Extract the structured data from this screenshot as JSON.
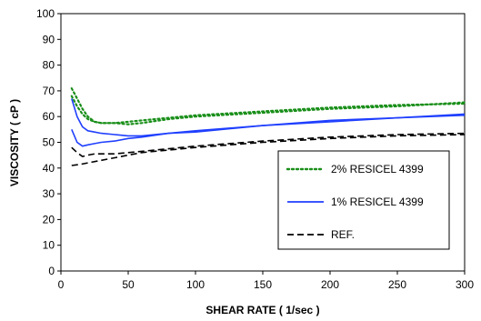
{
  "chart_data": {
    "type": "line",
    "xlabel": "SHEAR RATE ( 1/sec )",
    "ylabel": "VISCOSITY ( cP )",
    "xlim": [
      0,
      300
    ],
    "ylim": [
      0,
      100
    ],
    "xticks": [
      "0",
      "50",
      "100",
      "150",
      "200",
      "250",
      "300"
    ],
    "yticks": [
      "0",
      "10",
      "20",
      "30",
      "40",
      "50",
      "60",
      "70",
      "80",
      "90",
      "100"
    ],
    "grid": false,
    "legend_position": "bottom-right",
    "series": [
      {
        "name": "2% RESICEL 4399",
        "color": "#1a8f1a",
        "dash": "dotted",
        "curves": [
          {
            "x": [
              8,
              12,
              16,
              20,
              25,
              30,
              40,
              50,
              60,
              80,
              100,
              150,
              200,
              250,
              300
            ],
            "y": [
              71,
              67,
              63,
              60,
              58,
              57.5,
              57.5,
              58,
              58.5,
              59.5,
              60.5,
              62,
              63.5,
              64.5,
              65
            ]
          },
          {
            "x": [
              8,
              12,
              16,
              20,
              25,
              30,
              40,
              50,
              60,
              80,
              100,
              150,
              200,
              250,
              300
            ],
            "y": [
              68,
              64,
              61,
              59,
              58,
              57.5,
              57.5,
              57,
              57.5,
              59,
              60,
              61.5,
              63,
              64,
              65.5
            ]
          }
        ]
      },
      {
        "name": "1% RESICEL 4399",
        "color": "#1f3fff",
        "dash": "solid",
        "curves": [
          {
            "x": [
              8,
              12,
              16,
              20,
              25,
              30,
              40,
              50,
              60,
              80,
              100,
              150,
              200,
              250,
              300
            ],
            "y": [
              67,
              60,
              56,
              54.5,
              54,
              53.5,
              53,
              52.5,
              52.5,
              53.5,
              54.5,
              56.5,
              58.5,
              59.5,
              61
            ]
          },
          {
            "x": [
              8,
              12,
              16,
              20,
              25,
              30,
              40,
              50,
              60,
              80,
              100,
              150,
              200,
              250,
              300
            ],
            "y": [
              55,
              50,
              48.5,
              49,
              49.5,
              50,
              50.5,
              51.5,
              52,
              53.5,
              54,
              56.5,
              58,
              59.5,
              60.5
            ]
          }
        ]
      },
      {
        "name": "REF.",
        "color": "#000000",
        "dash": "dashed",
        "curves": [
          {
            "x": [
              8,
              12,
              16,
              20,
              25,
              30,
              40,
              50,
              60,
              80,
              100,
              150,
              200,
              250,
              300
            ],
            "y": [
              48,
              46,
              44.5,
              45,
              45.5,
              45.5,
              45.5,
              46,
              46.5,
              47.5,
              48.5,
              50.5,
              52,
              53,
              53.5
            ]
          },
          {
            "x": [
              8,
              15,
              20,
              30,
              40,
              50,
              60,
              80,
              100,
              150,
              200,
              250,
              300
            ],
            "y": [
              41,
              41.5,
              42,
              43,
              44,
              45,
              46,
              47,
              48,
              50,
              51.5,
              52.5,
              53
            ]
          }
        ]
      }
    ]
  }
}
